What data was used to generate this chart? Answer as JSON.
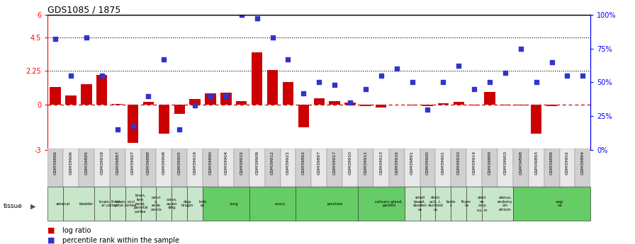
{
  "title": "GDS1085 / 1875",
  "samples": [
    "GSM39896",
    "GSM39906",
    "GSM39895",
    "GSM39918",
    "GSM39887",
    "GSM39907",
    "GSM39888",
    "GSM39908",
    "GSM39905",
    "GSM39919",
    "GSM39890",
    "GSM39904",
    "GSM39915",
    "GSM39909",
    "GSM39912",
    "GSM39921",
    "GSM39892",
    "GSM39897",
    "GSM39917",
    "GSM39910",
    "GSM39911",
    "GSM39913",
    "GSM39916",
    "GSM39891",
    "GSM39900",
    "GSM39901",
    "GSM39920",
    "GSM39914",
    "GSM39899",
    "GSM39903",
    "GSM39898",
    "GSM39893",
    "GSM39889",
    "GSM39902",
    "GSM39894"
  ],
  "log_ratio": [
    1.2,
    0.65,
    1.4,
    2.0,
    0.05,
    -2.5,
    0.2,
    -1.9,
    -0.6,
    0.4,
    0.75,
    0.8,
    0.25,
    3.5,
    2.3,
    1.5,
    -1.5,
    0.45,
    0.25,
    0.15,
    -0.1,
    -0.15,
    0.0,
    -0.05,
    -0.08,
    0.1,
    0.2,
    -0.05,
    0.85,
    -0.04,
    -0.04,
    -1.9,
    -0.08,
    0.0,
    0.02
  ],
  "percentile_pct": [
    82,
    55,
    83,
    55,
    15,
    18,
    40,
    67,
    15,
    33,
    40,
    40,
    100,
    97,
    83,
    67,
    42,
    50,
    48,
    35,
    45,
    55,
    60,
    50,
    30,
    50,
    62,
    45,
    50,
    57,
    75,
    50,
    65,
    55,
    55
  ],
  "bar_color": "#cc0000",
  "scatter_color": "#3333cc",
  "left_ylim": [
    -3,
    6
  ],
  "right_ylim": [
    0,
    100
  ],
  "tissue_groups": [
    {
      "label": "adrenal",
      "start": 0,
      "end": 1,
      "color": "#c8e6c9"
    },
    {
      "label": "bladder",
      "start": 1,
      "end": 3,
      "color": "#c8e6c9"
    },
    {
      "label": "brain, front\nal cortex",
      "start": 3,
      "end": 4,
      "color": "#c8e6c9"
    },
    {
      "label": "brain, occi\npital cortex",
      "start": 4,
      "end": 5,
      "color": "#c8e6c9"
    },
    {
      "label": "brain,\ntem\nporal,\nparietal\ncortex",
      "start": 5,
      "end": 6,
      "color": "#c8e6c9"
    },
    {
      "label": "cervi\nx,\nendo\ncervix",
      "start": 6,
      "end": 7,
      "color": "#c8e6c9"
    },
    {
      "label": "colon,\nascen\nding",
      "start": 7,
      "end": 8,
      "color": "#c8e6c9"
    },
    {
      "label": "diap\nhragm",
      "start": 8,
      "end": 9,
      "color": "#c8e6c9"
    },
    {
      "label": "kidn\ney",
      "start": 9,
      "end": 10,
      "color": "#c8e6c9"
    },
    {
      "label": "lung",
      "start": 10,
      "end": 13,
      "color": "#66cc66"
    },
    {
      "label": "ovary",
      "start": 13,
      "end": 16,
      "color": "#66cc66"
    },
    {
      "label": "prostate",
      "start": 16,
      "end": 20,
      "color": "#66cc66"
    },
    {
      "label": "salivary gland,\nparotid",
      "start": 20,
      "end": 23,
      "color": "#66cc66"
    },
    {
      "label": "small\nbowel,\nduoden\nus",
      "start": 23,
      "end": 24,
      "color": "#c8e6c9"
    },
    {
      "label": "stom\nach, I,\nducfund\nus",
      "start": 24,
      "end": 25,
      "color": "#c8e6c9"
    },
    {
      "label": "teste\ns",
      "start": 25,
      "end": 26,
      "color": "#c8e6c9"
    },
    {
      "label": "thym\nus",
      "start": 26,
      "end": 27,
      "color": "#c8e6c9"
    },
    {
      "label": "uteri\nne\ncorp\nus, m",
      "start": 27,
      "end": 28,
      "color": "#c8e6c9"
    },
    {
      "label": "uterus,\nendomy\nom\netrium",
      "start": 28,
      "end": 30,
      "color": "#c8e6c9"
    },
    {
      "label": "vagi\nna",
      "start": 30,
      "end": 35,
      "color": "#66cc66"
    }
  ]
}
